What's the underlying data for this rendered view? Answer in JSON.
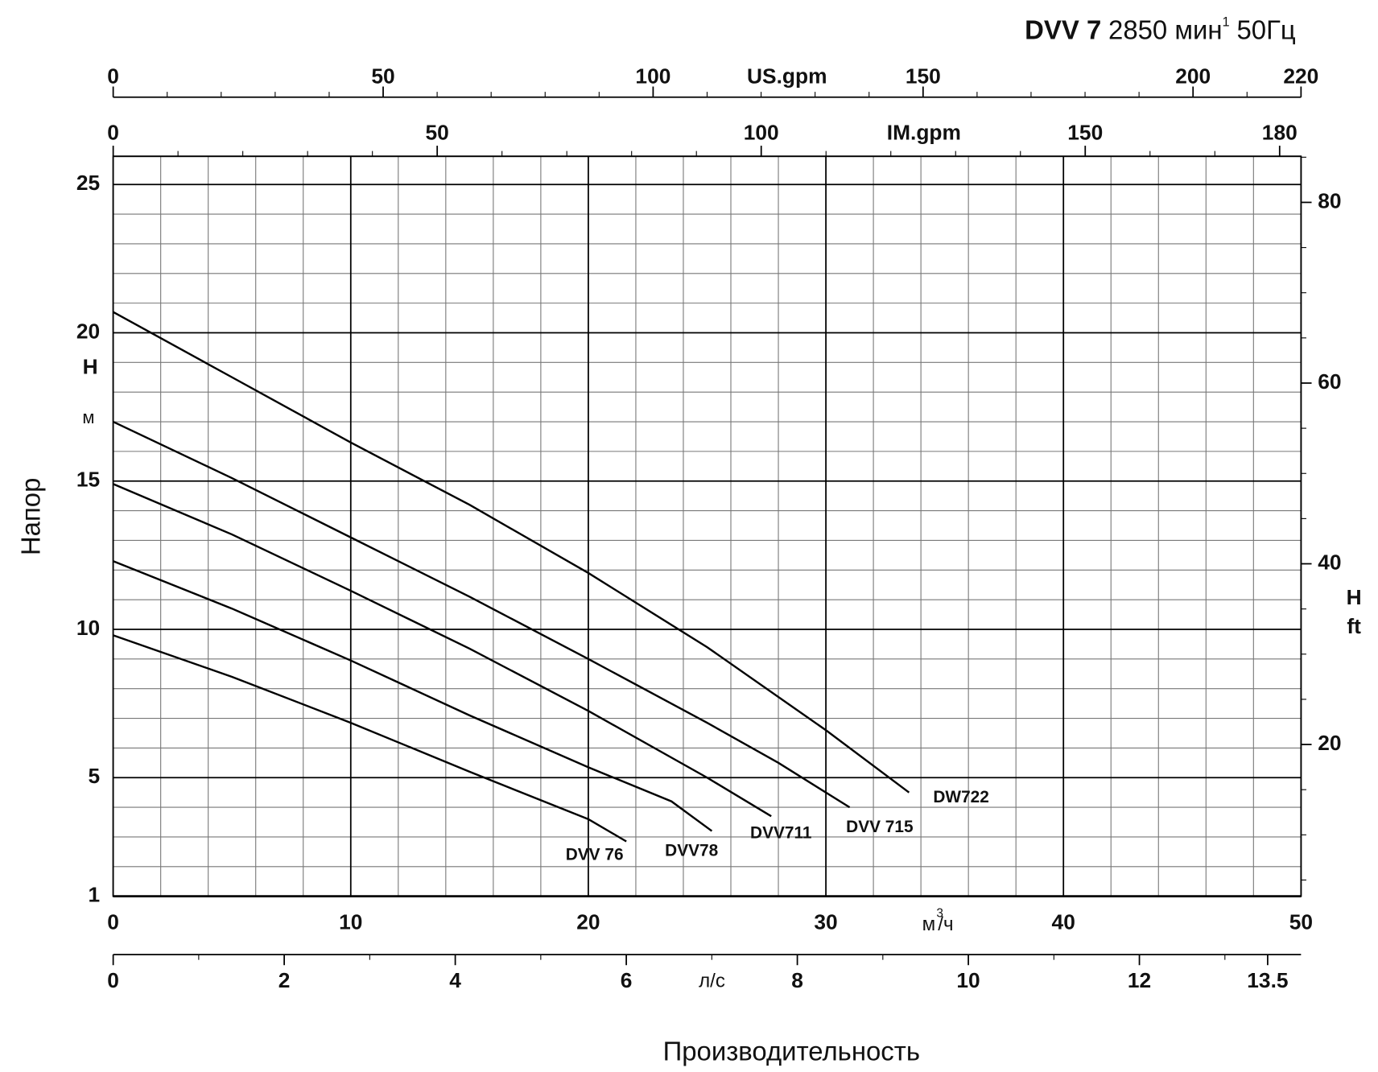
{
  "chart_data": {
    "type": "line",
    "title": "DVV 7",
    "title_speed": "2850 мин",
    "title_speed_sup": "1",
    "title_freq": "50Гц",
    "xlabel": "Производительность",
    "xunit": "м",
    "xunit_sup": "3",
    "xunit_tail": "/ч",
    "ylabel": "Напор",
    "y_symbol": "H",
    "y_unit": "м",
    "y2_symbol": "H",
    "y2_unit": "ft",
    "xlim": [
      0,
      50
    ],
    "xticks": [
      0,
      10,
      20,
      30,
      40,
      50
    ],
    "ylim": [
      1,
      25.95
    ],
    "yticks": [
      1,
      5,
      10,
      15,
      20,
      25
    ],
    "y2lim": [
      3.2,
      85.1
    ],
    "y2ticks": [
      20,
      40,
      60,
      80
    ],
    "us_gpm": {
      "label": "US.gpm",
      "lim": [
        0,
        220
      ],
      "ticks": [
        0,
        50,
        100,
        150,
        200,
        220
      ]
    },
    "im_gpm": {
      "label": "IM.gpm",
      "lim": [
        0,
        183.3
      ],
      "ticks": [
        0,
        50,
        100,
        150,
        180
      ]
    },
    "l_s": {
      "label": "л/с",
      "lim": [
        0,
        13.89
      ],
      "ticks": [
        0,
        2,
        4,
        6,
        8,
        10,
        12,
        13.5
      ]
    },
    "grid": true,
    "minor_steps": {
      "x": 2,
      "y": 1,
      "y2": 5,
      "us_gpm": 10,
      "im_gpm": 10,
      "l_s": 1
    },
    "series": [
      {
        "name": "DVV 76",
        "color": "#000000",
        "x": [
          0,
          5,
          10,
          15,
          20,
          21.6
        ],
        "values": [
          9.8,
          8.4,
          6.85,
          5.2,
          3.6,
          2.85
        ]
      },
      {
        "name": "DVV78",
        "color": "#000000",
        "x": [
          0,
          5,
          10,
          15,
          20,
          23.5,
          25.2
        ],
        "values": [
          12.3,
          10.7,
          8.95,
          7.1,
          5.35,
          4.2,
          3.2
        ]
      },
      {
        "name": "DVV711",
        "color": "#000000",
        "x": [
          0,
          5,
          10,
          15,
          20,
          25,
          27.7
        ],
        "values": [
          14.9,
          13.2,
          11.3,
          9.35,
          7.25,
          5.0,
          3.7
        ]
      },
      {
        "name": "DVV 715",
        "color": "#000000",
        "x": [
          0,
          5,
          10,
          15,
          20,
          25,
          28,
          31
        ],
        "values": [
          17.0,
          15.1,
          13.1,
          11.1,
          9.0,
          6.85,
          5.5,
          4.0
        ]
      },
      {
        "name": "DW722",
        "color": "#000000",
        "x": [
          0,
          5,
          10,
          15,
          20,
          25,
          30,
          33.5
        ],
        "values": [
          20.7,
          18.5,
          16.3,
          14.2,
          11.9,
          9.4,
          6.6,
          4.5
        ]
      }
    ]
  }
}
